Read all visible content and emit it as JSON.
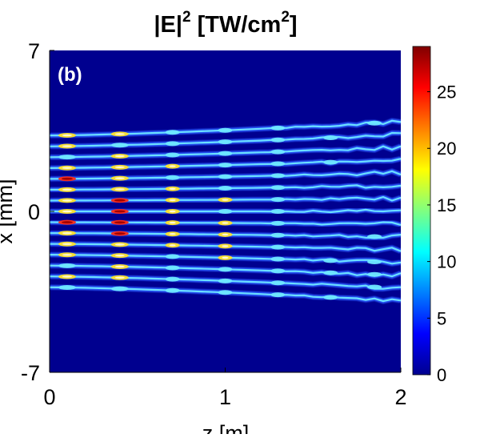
{
  "chart_data": {
    "type": "heatmap",
    "title": "|E|² [TW/cm²]",
    "title_parts": {
      "base": "|E|",
      "exp1": "2",
      "mid": " [TW/cm",
      "exp2": "2",
      "end": "]"
    },
    "panel_label": "(b)",
    "xlabel": "z [m]",
    "ylabel": "x [mm]",
    "xlim": [
      0,
      2
    ],
    "ylim": [
      -7,
      7
    ],
    "x_ticks": [
      0,
      1,
      2
    ],
    "x_tick_labels": [
      "0",
      "1",
      "2"
    ],
    "y_ticks": [
      -7,
      0,
      7
    ],
    "y_tick_labels": [
      "-7",
      "0",
      "7"
    ],
    "colorbar": {
      "colormap": "jet",
      "range": [
        0,
        29
      ],
      "ticks": [
        0,
        5,
        10,
        15,
        20,
        25
      ],
      "tick_labels": [
        "0",
        "5",
        "10",
        "15",
        "20",
        "25"
      ]
    },
    "filaments": {
      "count": 15,
      "x_start_range_mm": [
        -3.3,
        3.3
      ],
      "x_end_range_mm": [
        -3.9,
        3.9
      ],
      "hotspot_z_m": [
        0.1,
        0.4,
        0.7,
        1.0,
        1.3,
        1.6,
        1.85
      ],
      "peak_intensity": 29
    },
    "background_color": "#00008f"
  }
}
